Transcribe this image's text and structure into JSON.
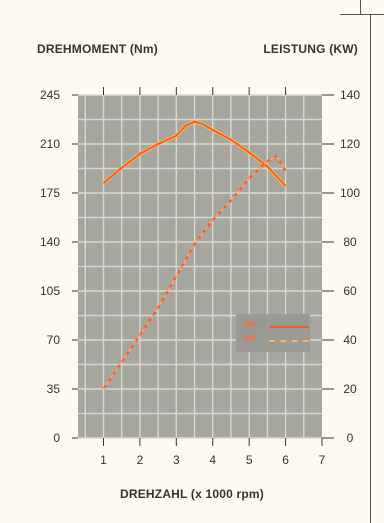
{
  "chart_data": {
    "type": "line",
    "xlabel": "DREHZAHL (x 1000 rpm)",
    "ylabel_left": "DREHMOMENT (Nm)",
    "ylabel_right": "LEISTUNG (KW)",
    "x_ticks": [
      1,
      2,
      3,
      4,
      5,
      6,
      7
    ],
    "y_left_ticks": [
      0,
      35,
      70,
      105,
      140,
      175,
      210,
      245
    ],
    "y_right_ticks": [
      0,
      20,
      40,
      60,
      80,
      100,
      120,
      140
    ],
    "xlim": [
      0.3,
      7
    ],
    "ylim_left": [
      0,
      245
    ],
    "ylim_right": [
      0,
      140
    ],
    "grid": true,
    "legend_position": "bottom-right",
    "colors": {
      "nm": "#ff5530",
      "kw": "#ffb060",
      "nm_overlay": "#f0d040",
      "plot_bg": "#a6a69f",
      "grid": "#d8d8d2"
    },
    "series": [
      {
        "name": "Nm",
        "axis": "left",
        "style": "solid",
        "x": [
          1,
          1.5,
          2,
          2.5,
          3,
          3.25,
          3.5,
          3.75,
          4,
          4.5,
          5,
          5.5,
          6
        ],
        "y": [
          182,
          193,
          203,
          210,
          216,
          223,
          226,
          224,
          220,
          213,
          204,
          194,
          180
        ]
      },
      {
        "name": "kW",
        "axis": "left_scaled_to_right",
        "style": "dashed",
        "x": [
          1,
          1.5,
          2,
          2.5,
          3,
          3.5,
          4,
          4.5,
          5,
          5.5,
          5.75,
          6
        ],
        "y": [
          20,
          31,
          42,
          53,
          66,
          79,
          89,
          97,
          106,
          113,
          115,
          109
        ]
      }
    ],
    "legend": [
      {
        "label": "Nm",
        "style": "solid"
      },
      {
        "label": "kW",
        "style": "dashed"
      }
    ]
  }
}
